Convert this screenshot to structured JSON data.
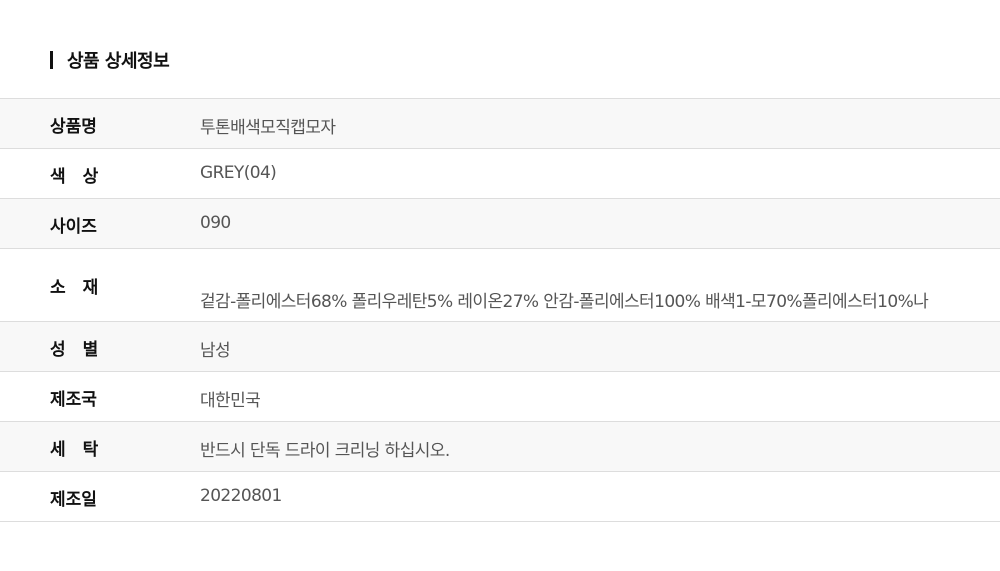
{
  "section_title": "상품 상세정보",
  "rows": [
    {
      "label": "상품명",
      "value": "투톤배색모직캡모자"
    },
    {
      "label": "색　상",
      "value": "GREY(04)"
    },
    {
      "label": "사이즈",
      "value": "090"
    },
    {
      "label": "소　재",
      "value": "겉감-폴리에스터68% 폴리우레탄5% 레이온27% 안감-폴리에스터100% 배색1-모70%폴리에스터10%나"
    },
    {
      "label": "성　별",
      "value": "남성"
    },
    {
      "label": "제조국",
      "value": "대한민국"
    },
    {
      "label": "세　탁",
      "value": "반드시 단독 드라이 크리닝 하십시오."
    },
    {
      "label": "제조일",
      "value": "20220801"
    }
  ]
}
